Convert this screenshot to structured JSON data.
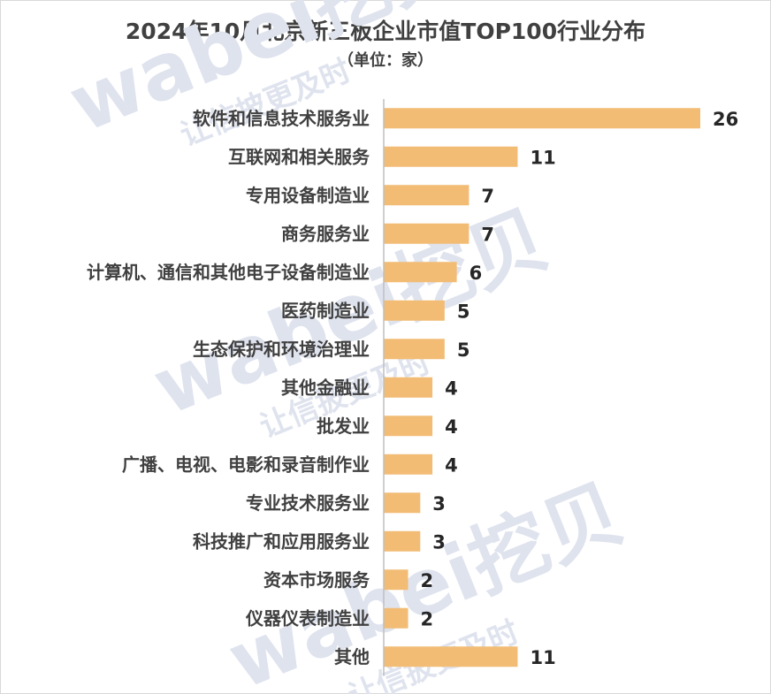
{
  "chart_data": {
    "type": "bar",
    "orientation": "horizontal",
    "title": "2024年10月北京新三板企业市值TOP100行业分布",
    "subtitle": "（单位：家）",
    "categories": [
      "软件和信息技术服务业",
      "互联网和相关服务",
      "专用设备制造业",
      "商务服务业",
      "计算机、通信和其他电子设备制造业",
      "医药制造业",
      "生态保护和环境治理业",
      "其他金融业",
      "批发业",
      "广播、电视、电影和录音制作业",
      "专业技术服务业",
      "科技推广和应用服务业",
      "资本市场服务",
      "仪器仪表制造业",
      "其他"
    ],
    "values": [
      26,
      11,
      7,
      7,
      6,
      5,
      5,
      4,
      4,
      4,
      3,
      3,
      2,
      2,
      11
    ],
    "xlim": [
      0,
      26
    ],
    "grid": false,
    "legend": "none",
    "bar_color": "#f2bc75"
  },
  "watermark": {
    "brand": "wabei挖贝",
    "slogan": "让信披更及时"
  }
}
